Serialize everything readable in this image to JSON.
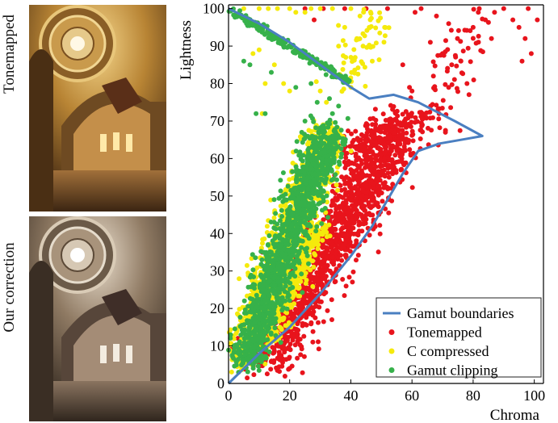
{
  "panels": [
    {
      "label": "Tonemapped",
      "image": "hdr-church-dome-interior-warm-tone"
    },
    {
      "label": "Our correction",
      "image": "hdr-church-dome-interior-neutral-tone"
    }
  ],
  "colors": {
    "boundary": "#4a7fc1",
    "tonemapped": "#e8141c",
    "compressed": "#f5ea0c",
    "clipping": "#36b14a"
  },
  "chart_data": {
    "type": "scatter",
    "title": "",
    "xlabel": "Chroma",
    "ylabel": "Lightness",
    "xlim": [
      0,
      103
    ],
    "ylim": [
      0,
      101
    ],
    "xticks": [
      0,
      20,
      40,
      60,
      80,
      100
    ],
    "yticks": [
      0,
      10,
      20,
      30,
      40,
      50,
      60,
      70,
      80,
      90,
      100
    ],
    "grid": false,
    "legend_position": "bottom-right",
    "boundary": {
      "name": "Gamut boundaries",
      "points": [
        [
          0,
          0
        ],
        [
          10,
          8
        ],
        [
          20,
          15
        ],
        [
          30,
          24
        ],
        [
          40,
          34
        ],
        [
          47,
          42
        ],
        [
          52,
          49
        ],
        [
          57,
          56
        ],
        [
          62,
          62
        ],
        [
          69,
          64
        ],
        [
          76,
          65
        ],
        [
          83,
          66
        ],
        [
          74,
          70
        ],
        [
          62,
          75
        ],
        [
          54,
          77
        ],
        [
          46,
          76
        ],
        [
          40,
          79
        ],
        [
          30,
          85
        ],
        [
          20,
          91
        ],
        [
          10,
          96
        ],
        [
          0,
          100
        ]
      ]
    },
    "series": [
      {
        "name": "Tonemapped",
        "color": "#e8141c",
        "clusters": [
          {
            "from": [
              12,
              5
            ],
            "to": [
              55,
              68
            ],
            "spread": 4.5,
            "count": 1500
          },
          {
            "from": [
              35,
              62
            ],
            "to": [
              65,
              73
            ],
            "spread": 3,
            "count": 120
          },
          {
            "from": [
              63,
              62
            ],
            "to": [
              80,
              99
            ],
            "spread": 4,
            "count": 70
          }
        ],
        "points": [
          [
            31,
            100
          ],
          [
            45,
            100
          ],
          [
            61,
            99
          ],
          [
            68,
            98
          ],
          [
            72,
            96
          ],
          [
            80,
            95
          ],
          [
            82,
            100
          ],
          [
            87,
            99
          ],
          [
            93,
            97
          ],
          [
            95,
            95
          ],
          [
            97,
            92
          ],
          [
            99,
            88
          ],
          [
            101,
            97
          ],
          [
            98,
            100
          ],
          [
            90,
            100
          ],
          [
            96,
            86
          ],
          [
            86,
            92
          ],
          [
            84,
            97
          ],
          [
            70,
            88
          ],
          [
            73,
            85
          ],
          [
            66,
            91
          ],
          [
            63,
            100
          ],
          [
            57,
            85
          ],
          [
            60,
            78
          ],
          [
            76,
            86
          ],
          [
            72,
            79
          ],
          [
            78,
            80
          ],
          [
            67,
            82
          ],
          [
            25,
            100
          ],
          [
            28,
            97
          ],
          [
            38,
            100
          ],
          [
            52,
            100
          ]
        ]
      },
      {
        "name": "C compressed",
        "color": "#f5ea0c",
        "clusters": [
          {
            "from": [
              3,
              5
            ],
            "to": [
              33,
              68
            ],
            "spread": 3.5,
            "count": 900
          },
          {
            "from": [
              12,
              10
            ],
            "to": [
              30,
              42
            ],
            "spread": 2,
            "count": 260
          },
          {
            "from": [
              36,
              78
            ],
            "to": [
              48,
              100
            ],
            "spread": 4,
            "count": 60
          }
        ],
        "points": [
          [
            5,
            100
          ],
          [
            10,
            100
          ],
          [
            13,
            100
          ],
          [
            16,
            100
          ],
          [
            20,
            100
          ],
          [
            22,
            99
          ],
          [
            25,
            99
          ],
          [
            27,
            100
          ],
          [
            30,
            100
          ],
          [
            34,
            100
          ],
          [
            40,
            100
          ],
          [
            43,
            98
          ],
          [
            46,
            95
          ],
          [
            42,
            92
          ],
          [
            38,
            95
          ],
          [
            36,
            90
          ],
          [
            44,
            90
          ],
          [
            40,
            87
          ],
          [
            47,
            86
          ],
          [
            10,
            89
          ],
          [
            8,
            88
          ],
          [
            15,
            85
          ],
          [
            18,
            80
          ],
          [
            12,
            80
          ],
          [
            20,
            78
          ],
          [
            11,
            72
          ],
          [
            30,
            78
          ],
          [
            32,
            75
          ]
        ]
      },
      {
        "name": "Gamut clipping",
        "color": "#36b14a",
        "clusters": [
          {
            "from": [
              5,
              5
            ],
            "to": [
              33,
              68
            ],
            "spread": 3.2,
            "count": 1400
          },
          {
            "from": [
              0,
              100
            ],
            "to": [
              40,
              80
            ],
            "spread": 0.8,
            "count": 220
          }
        ],
        "points": [
          [
            4,
            98
          ],
          [
            8,
            96
          ],
          [
            15,
            92
          ],
          [
            20,
            90
          ],
          [
            30,
            85
          ],
          [
            35,
            82
          ],
          [
            7,
            85
          ],
          [
            14,
            83
          ],
          [
            22,
            79
          ],
          [
            27,
            80
          ],
          [
            29,
            75
          ],
          [
            33,
            76
          ],
          [
            36,
            74
          ],
          [
            12,
            72
          ],
          [
            9,
            72
          ],
          [
            25,
            70
          ],
          [
            34,
            72
          ],
          [
            5,
            86
          ]
        ]
      }
    ]
  },
  "legend": {
    "items": [
      {
        "label": "Gamut boundaries",
        "kind": "line",
        "color": "#4a7fc1"
      },
      {
        "label": "Tonemapped",
        "kind": "dot",
        "color": "#e8141c"
      },
      {
        "label": "C compressed",
        "kind": "dot",
        "color": "#f5ea0c"
      },
      {
        "label": "Gamut clipping",
        "kind": "dot",
        "color": "#36b14a"
      }
    ]
  }
}
